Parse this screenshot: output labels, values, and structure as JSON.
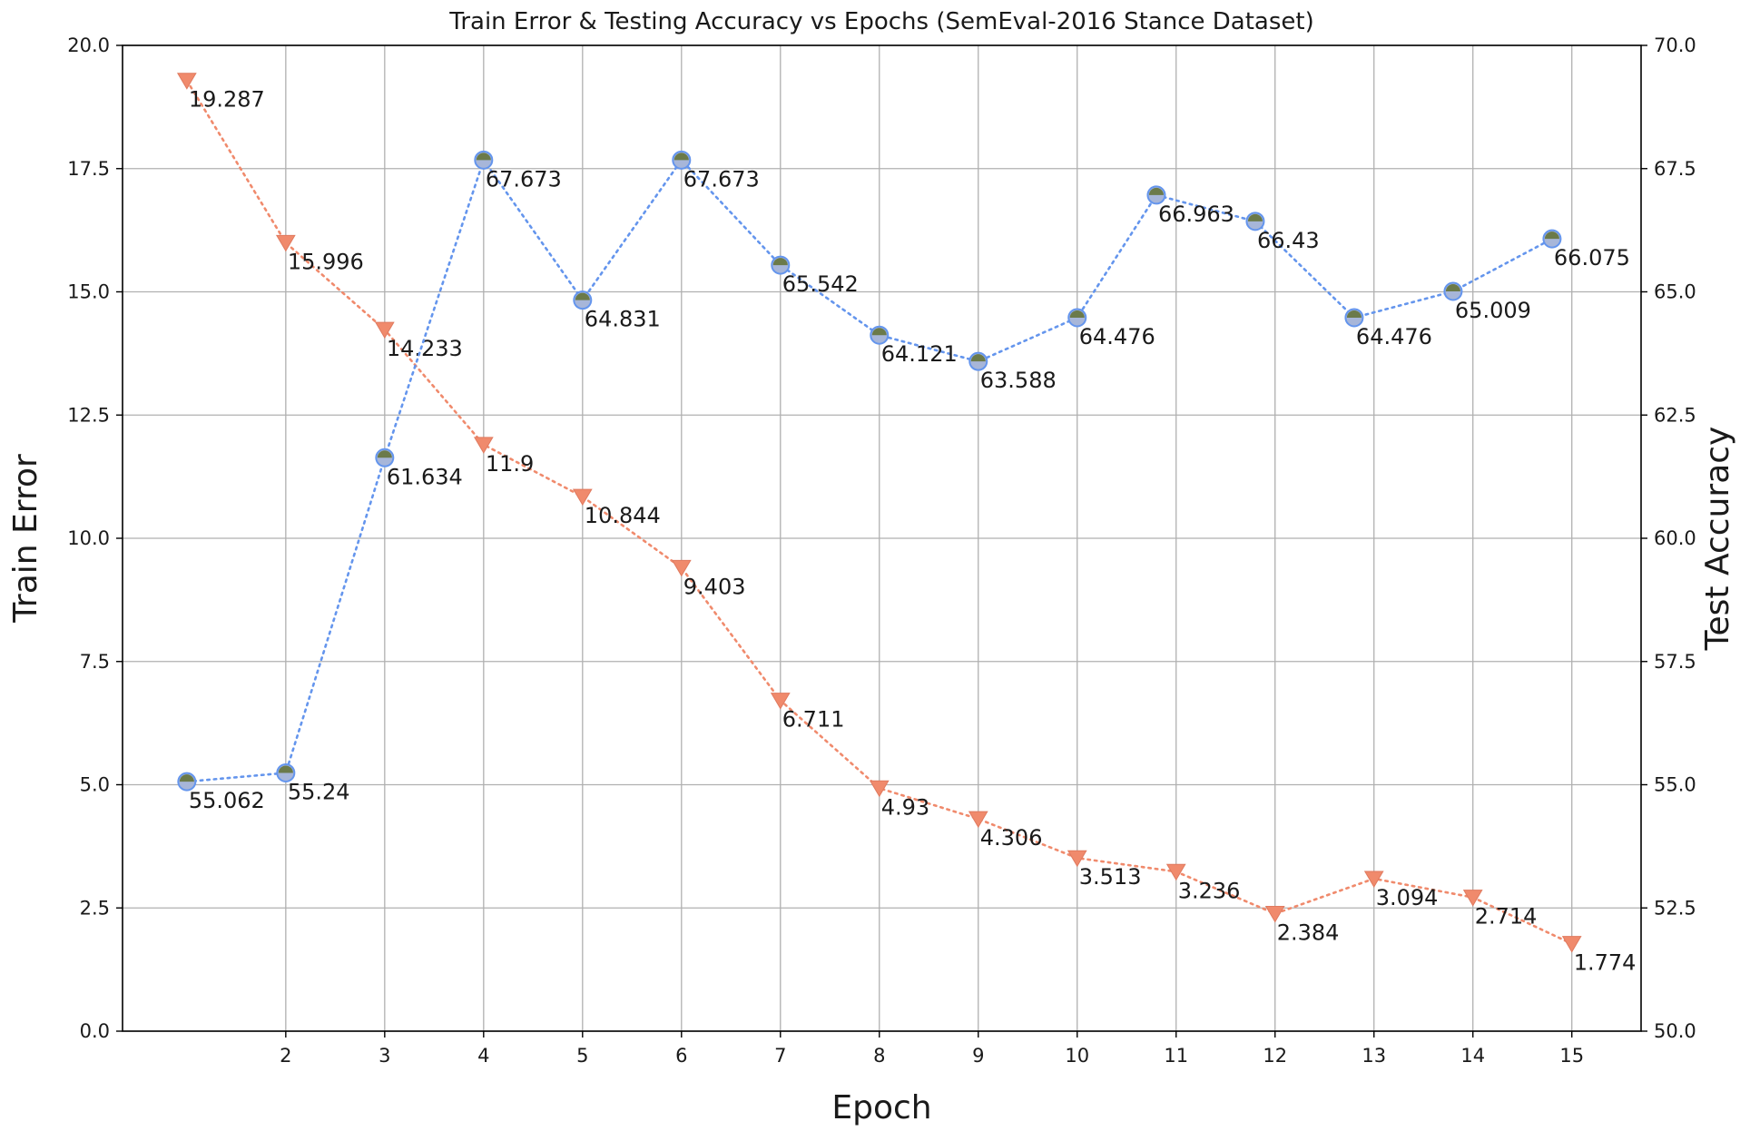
{
  "chart_data": {
    "type": "line",
    "title": "Train Error & Testing Accuracy vs Epochs (SemEval-2016 Stance Dataset)",
    "xlabel": "Epoch",
    "ylabel_left": "Train Error",
    "ylabel_right": "Test Accuracy",
    "x_ticks": [
      2,
      3,
      4,
      5,
      6,
      7,
      8,
      9,
      10,
      11,
      12,
      13,
      14,
      15
    ],
    "xlim": [
      0.35,
      15.7
    ],
    "ylim_left": [
      0.0,
      20.0
    ],
    "ylim_right": [
      50.0,
      70.0
    ],
    "y_ticks_left": [
      "0.0",
      "2.5",
      "5.0",
      "7.5",
      "10.0",
      "12.5",
      "15.0",
      "17.5",
      "20.0"
    ],
    "y_ticks_right": [
      "50.0",
      "52.5",
      "55.0",
      "57.5",
      "60.0",
      "62.5",
      "65.0",
      "67.5",
      "70.0"
    ],
    "grid": true,
    "series": [
      {
        "axis": "left",
        "color": "#f08a6c",
        "marker": "triangle-down",
        "line_style": "dotted",
        "points": [
          {
            "x": 1,
            "y": 19.287,
            "label": "19.287"
          },
          {
            "x": 2,
            "y": 15.996,
            "label": "15.996"
          },
          {
            "x": 3,
            "y": 14.233,
            "label": "14.233"
          },
          {
            "x": 4,
            "y": 11.9,
            "label": "11.9"
          },
          {
            "x": 5,
            "y": 10.844,
            "label": "10.844"
          },
          {
            "x": 6,
            "y": 9.403,
            "label": "9.403"
          },
          {
            "x": 7,
            "y": 6.711,
            "label": "6.711"
          },
          {
            "x": 8,
            "y": 4.93,
            "label": "4.93"
          },
          {
            "x": 9,
            "y": 4.306,
            "label": "4.306"
          },
          {
            "x": 10,
            "y": 3.513,
            "label": "3.513"
          },
          {
            "x": 11,
            "y": 3.236,
            "label": "3.236"
          },
          {
            "x": 12,
            "y": 2.384,
            "label": "2.384"
          },
          {
            "x": 13,
            "y": 3.094,
            "label": "3.094"
          },
          {
            "x": 14,
            "y": 2.714,
            "label": "2.714"
          },
          {
            "x": 15,
            "y": 1.774,
            "label": "1.774"
          }
        ]
      },
      {
        "axis": "right",
        "color": "#6495ed",
        "marker": "circle",
        "line_style": "dotted",
        "points": [
          {
            "x": 1,
            "y": 55.062,
            "label": "55.062"
          },
          {
            "x": 2,
            "y": 55.24,
            "label": "55.24"
          },
          {
            "x": 3,
            "y": 61.634,
            "label": "61.634"
          },
          {
            "x": 4,
            "y": 67.673,
            "label": "67.673"
          },
          {
            "x": 5,
            "y": 64.831,
            "label": "64.831"
          },
          {
            "x": 6,
            "y": 67.673,
            "label": "67.673"
          },
          {
            "x": 7,
            "y": 65.542,
            "label": "65.542"
          },
          {
            "x": 8,
            "y": 64.121,
            "label": "64.121"
          },
          {
            "x": 9,
            "y": 63.588,
            "label": "63.588"
          },
          {
            "x": 10,
            "y": 64.476,
            "label": "64.476"
          },
          {
            "x": 10.8,
            "y": 66.963,
            "label": "66.963"
          },
          {
            "x": 11.8,
            "y": 66.43,
            "label": "66.43"
          },
          {
            "x": 12.8,
            "y": 64.476,
            "label": "64.476"
          },
          {
            "x": 13.8,
            "y": 65.009,
            "label": "65.009"
          },
          {
            "x": 14.8,
            "y": 66.075,
            "label": "66.075"
          }
        ]
      }
    ]
  }
}
